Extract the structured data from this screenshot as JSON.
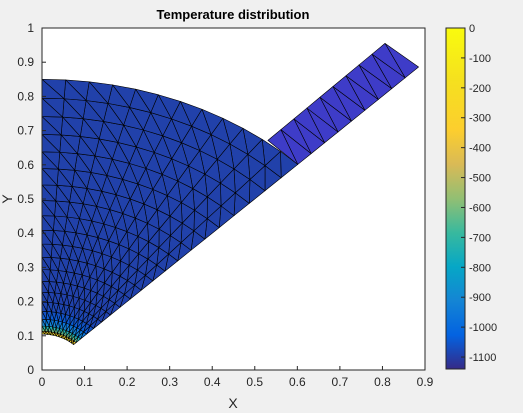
{
  "chart_data": {
    "type": "heatmap",
    "subtype": "fem-mesh-plot",
    "title": "Temperature distribution",
    "xlabel": "X",
    "ylabel": "Y",
    "xlim": [
      0,
      0.9
    ],
    "ylim": [
      0,
      1
    ],
    "xticks": [
      "0",
      "0.1",
      "0.2",
      "0.3",
      "0.4",
      "0.5",
      "0.6",
      "0.7",
      "0.8",
      "0.9"
    ],
    "yticks": [
      "0",
      "0.1",
      "0.2",
      "0.3",
      "0.4",
      "0.5",
      "0.6",
      "0.7",
      "0.8",
      "0.9",
      "1"
    ],
    "colorbar": {
      "colormap": "parula",
      "range": [
        -1140,
        0
      ],
      "ticks": [
        "0",
        "-100",
        "-200",
        "-300",
        "-400",
        "-500",
        "-600",
        "-700",
        "-800",
        "-900",
        "-1000",
        "-1100"
      ]
    },
    "geometry": {
      "inner_radius": 0.105,
      "outer_radius": 0.85,
      "sector_angle_start_deg": 45,
      "sector_angle_end_deg": 90,
      "arm_outer_corner_1": [
        0.806,
        0.955
      ],
      "arm_outer_corner_2": [
        0.885,
        0.886
      ]
    },
    "field_values": {
      "inner_boundary": 0,
      "bulk": -1090
    },
    "colors": {
      "bulk_fill": "#3e3cc8",
      "edge": "#000000",
      "axes_background": "#ffffff",
      "figure_background": "#f0f0f0"
    },
    "grid": false,
    "colorbar_location": "right"
  }
}
